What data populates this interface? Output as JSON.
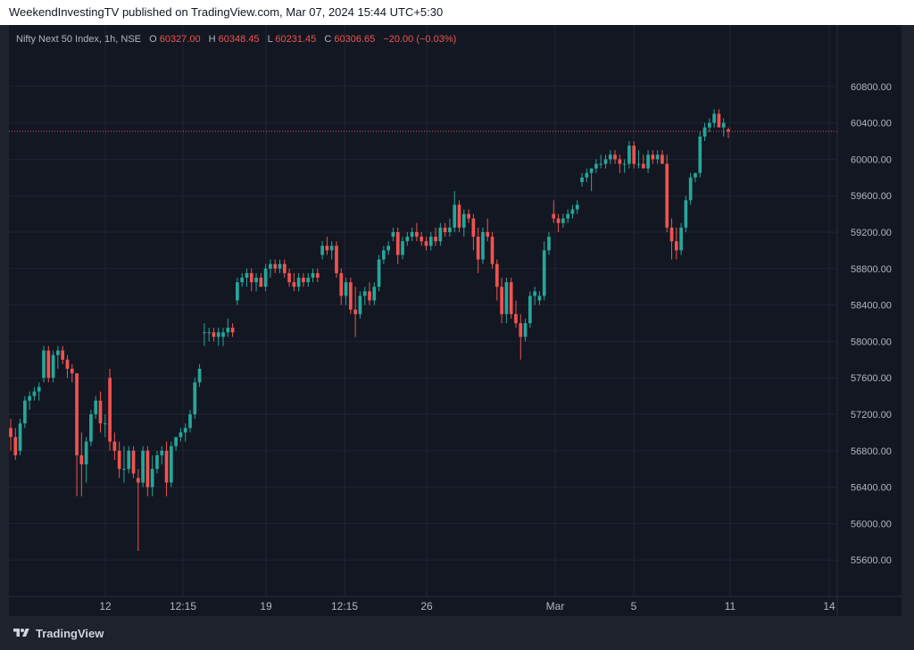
{
  "header": {
    "publish_line": "WeekendInvestingTV published on TradingView.com, Mar 07, 2024 15:44 UTC+5:30"
  },
  "legend": {
    "symbol": "Nifty Next 50 Index, 1h, NSE",
    "o_label": "O",
    "o_value": "60327.00",
    "h_label": "H",
    "h_value": "60348.45",
    "l_label": "L",
    "l_value": "60231.45",
    "c_label": "C",
    "c_value": "60306.65",
    "change": "−20.00 (−0.03%)"
  },
  "footer": {
    "brand": "TradingView"
  },
  "colors": {
    "background": "#131722",
    "up": "#26a69a",
    "down": "#ef5350",
    "grid": "#1f2433",
    "text": "#b2b5be",
    "last_price_line": "#ef5350"
  },
  "icons": {
    "logo": "tradingview-logo-icon"
  },
  "chart_data": {
    "type": "candlestick",
    "title": "Nifty Next 50 Index, 1h, NSE",
    "y_ticks": [
      "60800.00",
      "60400.00",
      "60000.00",
      "59600.00",
      "59200.00",
      "58800.00",
      "58400.00",
      "58000.00",
      "57600.00",
      "57200.00",
      "56800.00",
      "56400.00",
      "56000.00",
      "55600.00"
    ],
    "y_range": [
      55200,
      61200
    ],
    "x_ticks": [
      "12",
      "12:15",
      "19",
      "12:15",
      "26",
      "Mar",
      "5",
      "11",
      "14"
    ],
    "last_price": 60306.65,
    "grid": true,
    "candles": [
      {
        "o": 57050,
        "h": 57150,
        "l": 56800,
        "c": 56950
      },
      {
        "o": 56950,
        "h": 57050,
        "l": 56700,
        "c": 56750
      },
      {
        "o": 56800,
        "h": 57150,
        "l": 56750,
        "c": 57100
      },
      {
        "o": 57100,
        "h": 57400,
        "l": 57050,
        "c": 57350
      },
      {
        "o": 57350,
        "h": 57450,
        "l": 57250,
        "c": 57400
      },
      {
        "o": 57400,
        "h": 57500,
        "l": 57350,
        "c": 57450
      },
      {
        "o": 57450,
        "h": 57550,
        "l": 57350,
        "c": 57500
      },
      {
        "o": 57600,
        "h": 57950,
        "l": 57550,
        "c": 57900
      },
      {
        "o": 57900,
        "h": 57950,
        "l": 57550,
        "c": 57600
      },
      {
        "o": 57600,
        "h": 57900,
        "l": 57550,
        "c": 57850
      },
      {
        "o": 57850,
        "h": 57950,
        "l": 57700,
        "c": 57900
      },
      {
        "o": 57900,
        "h": 57950,
        "l": 57750,
        "c": 57800
      },
      {
        "o": 57800,
        "h": 57850,
        "l": 57600,
        "c": 57700
      },
      {
        "o": 57700,
        "h": 57750,
        "l": 57550,
        "c": 57650
      },
      {
        "o": 57650,
        "h": 57650,
        "l": 56300,
        "c": 56750
      },
      {
        "o": 56750,
        "h": 57000,
        "l": 56300,
        "c": 56650
      },
      {
        "o": 56650,
        "h": 56950,
        "l": 56450,
        "c": 56900
      },
      {
        "o": 56900,
        "h": 57250,
        "l": 56850,
        "c": 57200
      },
      {
        "o": 57200,
        "h": 57400,
        "l": 57150,
        "c": 57350
      },
      {
        "o": 57350,
        "h": 57450,
        "l": 57000,
        "c": 57100
      },
      {
        "o": 57100,
        "h": 57200,
        "l": 56950,
        "c": 57100
      },
      {
        "o": 57600,
        "h": 57700,
        "l": 56800,
        "c": 56900
      },
      {
        "o": 56900,
        "h": 57000,
        "l": 56700,
        "c": 56800
      },
      {
        "o": 56800,
        "h": 56900,
        "l": 56500,
        "c": 56600
      },
      {
        "o": 56600,
        "h": 56850,
        "l": 56450,
        "c": 56600
      },
      {
        "o": 56600,
        "h": 56850,
        "l": 56550,
        "c": 56800
      },
      {
        "o": 56800,
        "h": 56850,
        "l": 56500,
        "c": 56550
      },
      {
        "o": 56500,
        "h": 56600,
        "l": 55700,
        "c": 56450
      },
      {
        "o": 56450,
        "h": 56850,
        "l": 56400,
        "c": 56800
      },
      {
        "o": 56800,
        "h": 56850,
        "l": 56300,
        "c": 56400
      },
      {
        "o": 56400,
        "h": 56750,
        "l": 56300,
        "c": 56600
      },
      {
        "o": 56600,
        "h": 56800,
        "l": 56550,
        "c": 56750
      },
      {
        "o": 56750,
        "h": 56850,
        "l": 56650,
        "c": 56800
      },
      {
        "o": 56800,
        "h": 56900,
        "l": 56300,
        "c": 56450
      },
      {
        "o": 56450,
        "h": 56900,
        "l": 56400,
        "c": 56850
      },
      {
        "o": 56850,
        "h": 56950,
        "l": 56800,
        "c": 56950
      },
      {
        "o": 56950,
        "h": 57050,
        "l": 56900,
        "c": 57000
      },
      {
        "o": 57000,
        "h": 57100,
        "l": 56900,
        "c": 57050
      },
      {
        "o": 57050,
        "h": 57250,
        "l": 57000,
        "c": 57200
      },
      {
        "o": 57200,
        "h": 57600,
        "l": 57150,
        "c": 57550
      },
      {
        "o": 57550,
        "h": 57750,
        "l": 57500,
        "c": 57700
      },
      {
        "o": 58100,
        "h": 58200,
        "l": 57950,
        "c": 58100
      },
      {
        "o": 58100,
        "h": 58150,
        "l": 58000,
        "c": 58100
      },
      {
        "o": 58100,
        "h": 58150,
        "l": 58000,
        "c": 58050
      },
      {
        "o": 58050,
        "h": 58150,
        "l": 57950,
        "c": 58100
      },
      {
        "o": 58050,
        "h": 58150,
        "l": 57950,
        "c": 58100
      },
      {
        "o": 58100,
        "h": 58250,
        "l": 58050,
        "c": 58150
      },
      {
        "o": 58150,
        "h": 58200,
        "l": 58050,
        "c": 58100
      },
      {
        "o": 58450,
        "h": 58700,
        "l": 58400,
        "c": 58650
      },
      {
        "o": 58650,
        "h": 58750,
        "l": 58600,
        "c": 58700
      },
      {
        "o": 58700,
        "h": 58800,
        "l": 58600,
        "c": 58750
      },
      {
        "o": 58750,
        "h": 58800,
        "l": 58550,
        "c": 58650
      },
      {
        "o": 58650,
        "h": 58750,
        "l": 58550,
        "c": 58700
      },
      {
        "o": 58700,
        "h": 58750,
        "l": 58600,
        "c": 58600
      },
      {
        "o": 58600,
        "h": 58850,
        "l": 58550,
        "c": 58800
      },
      {
        "o": 58800,
        "h": 58900,
        "l": 58700,
        "c": 58850
      },
      {
        "o": 58850,
        "h": 58900,
        "l": 58750,
        "c": 58800
      },
      {
        "o": 58800,
        "h": 58900,
        "l": 58750,
        "c": 58850
      },
      {
        "o": 58850,
        "h": 58900,
        "l": 58700,
        "c": 58750
      },
      {
        "o": 58750,
        "h": 58800,
        "l": 58600,
        "c": 58650
      },
      {
        "o": 58650,
        "h": 58750,
        "l": 58550,
        "c": 58600
      },
      {
        "o": 58600,
        "h": 58750,
        "l": 58550,
        "c": 58700
      },
      {
        "o": 58700,
        "h": 58750,
        "l": 58600,
        "c": 58650
      },
      {
        "o": 58650,
        "h": 58750,
        "l": 58600,
        "c": 58700
      },
      {
        "o": 58700,
        "h": 58800,
        "l": 58650,
        "c": 58750
      },
      {
        "o": 58750,
        "h": 58800,
        "l": 58650,
        "c": 58700
      },
      {
        "o": 58950,
        "h": 59100,
        "l": 58900,
        "c": 59050
      },
      {
        "o": 59050,
        "h": 59150,
        "l": 58950,
        "c": 59000
      },
      {
        "o": 59000,
        "h": 59100,
        "l": 58900,
        "c": 59050
      },
      {
        "o": 59050,
        "h": 59100,
        "l": 58700,
        "c": 58750
      },
      {
        "o": 58750,
        "h": 58800,
        "l": 58400,
        "c": 58500
      },
      {
        "o": 58500,
        "h": 58700,
        "l": 58400,
        "c": 58650
      },
      {
        "o": 58650,
        "h": 58700,
        "l": 58300,
        "c": 58350
      },
      {
        "o": 58350,
        "h": 58600,
        "l": 58050,
        "c": 58300
      },
      {
        "o": 58300,
        "h": 58550,
        "l": 58250,
        "c": 58500
      },
      {
        "o": 58500,
        "h": 58600,
        "l": 58400,
        "c": 58550
      },
      {
        "o": 58550,
        "h": 58650,
        "l": 58400,
        "c": 58450
      },
      {
        "o": 58450,
        "h": 58650,
        "l": 58400,
        "c": 58600
      },
      {
        "o": 58600,
        "h": 58950,
        "l": 58550,
        "c": 58900
      },
      {
        "o": 58900,
        "h": 59050,
        "l": 58850,
        "c": 59000
      },
      {
        "o": 59000,
        "h": 59100,
        "l": 58950,
        "c": 59050
      },
      {
        "o": 59150,
        "h": 59250,
        "l": 59100,
        "c": 59200
      },
      {
        "o": 59200,
        "h": 59250,
        "l": 58850,
        "c": 58950
      },
      {
        "o": 58950,
        "h": 59150,
        "l": 58900,
        "c": 59100
      },
      {
        "o": 59100,
        "h": 59200,
        "l": 59050,
        "c": 59150
      },
      {
        "o": 59150,
        "h": 59250,
        "l": 59100,
        "c": 59200
      },
      {
        "o": 59200,
        "h": 59300,
        "l": 59100,
        "c": 59150
      },
      {
        "o": 59150,
        "h": 59200,
        "l": 59050,
        "c": 59100
      },
      {
        "o": 59100,
        "h": 59150,
        "l": 59000,
        "c": 59050
      },
      {
        "o": 59050,
        "h": 59200,
        "l": 59000,
        "c": 59150
      },
      {
        "o": 59150,
        "h": 59250,
        "l": 59050,
        "c": 59100
      },
      {
        "o": 59100,
        "h": 59300,
        "l": 59050,
        "c": 59250
      },
      {
        "o": 59250,
        "h": 59300,
        "l": 59150,
        "c": 59200
      },
      {
        "o": 59200,
        "h": 59350,
        "l": 59150,
        "c": 59250
      },
      {
        "o": 59250,
        "h": 59650,
        "l": 59200,
        "c": 59500
      },
      {
        "o": 59500,
        "h": 59550,
        "l": 59200,
        "c": 59250
      },
      {
        "o": 59250,
        "h": 59450,
        "l": 59150,
        "c": 59400
      },
      {
        "o": 59400,
        "h": 59450,
        "l": 59300,
        "c": 59350
      },
      {
        "o": 59350,
        "h": 59400,
        "l": 59000,
        "c": 59150
      },
      {
        "o": 59150,
        "h": 59250,
        "l": 58750,
        "c": 58900
      },
      {
        "o": 58900,
        "h": 59250,
        "l": 58850,
        "c": 59200
      },
      {
        "o": 59200,
        "h": 59350,
        "l": 59100,
        "c": 59150
      },
      {
        "o": 59150,
        "h": 59200,
        "l": 58800,
        "c": 58850
      },
      {
        "o": 58850,
        "h": 58900,
        "l": 58450,
        "c": 58600
      },
      {
        "o": 58600,
        "h": 58700,
        "l": 58200,
        "c": 58300
      },
      {
        "o": 58300,
        "h": 58700,
        "l": 58200,
        "c": 58650
      },
      {
        "o": 58650,
        "h": 58700,
        "l": 58250,
        "c": 58300
      },
      {
        "o": 58300,
        "h": 58450,
        "l": 58150,
        "c": 58200
      },
      {
        "o": 58200,
        "h": 58300,
        "l": 57800,
        "c": 58050
      },
      {
        "o": 58050,
        "h": 58250,
        "l": 58000,
        "c": 58200
      },
      {
        "o": 58200,
        "h": 58550,
        "l": 58150,
        "c": 58500
      },
      {
        "o": 58500,
        "h": 58600,
        "l": 58400,
        "c": 58550
      },
      {
        "o": 58450,
        "h": 58550,
        "l": 58400,
        "c": 58500
      },
      {
        "o": 58500,
        "h": 59100,
        "l": 58450,
        "c": 59000
      },
      {
        "o": 59000,
        "h": 59200,
        "l": 58950,
        "c": 59150
      },
      {
        "o": 59400,
        "h": 59550,
        "l": 59300,
        "c": 59350
      },
      {
        "o": 59350,
        "h": 59400,
        "l": 59200,
        "c": 59300
      },
      {
        "o": 59300,
        "h": 59400,
        "l": 59250,
        "c": 59350
      },
      {
        "o": 59350,
        "h": 59450,
        "l": 59300,
        "c": 59400
      },
      {
        "o": 59400,
        "h": 59500,
        "l": 59350,
        "c": 59450
      },
      {
        "o": 59450,
        "h": 59550,
        "l": 59400,
        "c": 59500
      },
      {
        "o": 59750,
        "h": 59850,
        "l": 59700,
        "c": 59800
      },
      {
        "o": 59800,
        "h": 59900,
        "l": 59750,
        "c": 59850
      },
      {
        "o": 59850,
        "h": 59900,
        "l": 59650,
        "c": 59900
      },
      {
        "o": 59900,
        "h": 60000,
        "l": 59850,
        "c": 59950
      },
      {
        "o": 59950,
        "h": 60050,
        "l": 59900,
        "c": 59950
      },
      {
        "o": 59950,
        "h": 60050,
        "l": 59900,
        "c": 60000
      },
      {
        "o": 60000,
        "h": 60100,
        "l": 59950,
        "c": 60050
      },
      {
        "o": 60050,
        "h": 60100,
        "l": 59950,
        "c": 60000
      },
      {
        "o": 60000,
        "h": 60050,
        "l": 59850,
        "c": 59950
      },
      {
        "o": 59950,
        "h": 60000,
        "l": 59850,
        "c": 59950
      },
      {
        "o": 59950,
        "h": 60200,
        "l": 59900,
        "c": 60150
      },
      {
        "o": 60150,
        "h": 60200,
        "l": 59900,
        "c": 59950
      },
      {
        "o": 59950,
        "h": 60100,
        "l": 59900,
        "c": 59950
      },
      {
        "o": 59950,
        "h": 60050,
        "l": 59900,
        "c": 59900
      },
      {
        "o": 59900,
        "h": 60100,
        "l": 59850,
        "c": 60050
      },
      {
        "o": 60050,
        "h": 60100,
        "l": 59950,
        "c": 60000
      },
      {
        "o": 60000,
        "h": 60100,
        "l": 59950,
        "c": 60050
      },
      {
        "o": 60050,
        "h": 60100,
        "l": 59950,
        "c": 59950
      },
      {
        "o": 59950,
        "h": 60050,
        "l": 59200,
        "c": 59250
      },
      {
        "o": 59250,
        "h": 59350,
        "l": 58900,
        "c": 59100
      },
      {
        "o": 59100,
        "h": 59250,
        "l": 58900,
        "c": 59000
      },
      {
        "o": 59000,
        "h": 59300,
        "l": 58950,
        "c": 59250
      },
      {
        "o": 59250,
        "h": 59600,
        "l": 59200,
        "c": 59550
      },
      {
        "o": 59550,
        "h": 59850,
        "l": 59500,
        "c": 59800
      },
      {
        "o": 59800,
        "h": 59850,
        "l": 59750,
        "c": 59850
      },
      {
        "o": 59850,
        "h": 60300,
        "l": 59800,
        "c": 60250
      },
      {
        "o": 60250,
        "h": 60400,
        "l": 60200,
        "c": 60350
      },
      {
        "o": 60350,
        "h": 60450,
        "l": 60300,
        "c": 60400
      },
      {
        "o": 60400,
        "h": 60550,
        "l": 60350,
        "c": 60500
      },
      {
        "o": 60500,
        "h": 60550,
        "l": 60400,
        "c": 60350
      },
      {
        "o": 60350,
        "h": 60450,
        "l": 60250,
        "c": 60400
      },
      {
        "o": 60327,
        "h": 60348.45,
        "l": 60231.45,
        "c": 60306.65
      }
    ]
  }
}
